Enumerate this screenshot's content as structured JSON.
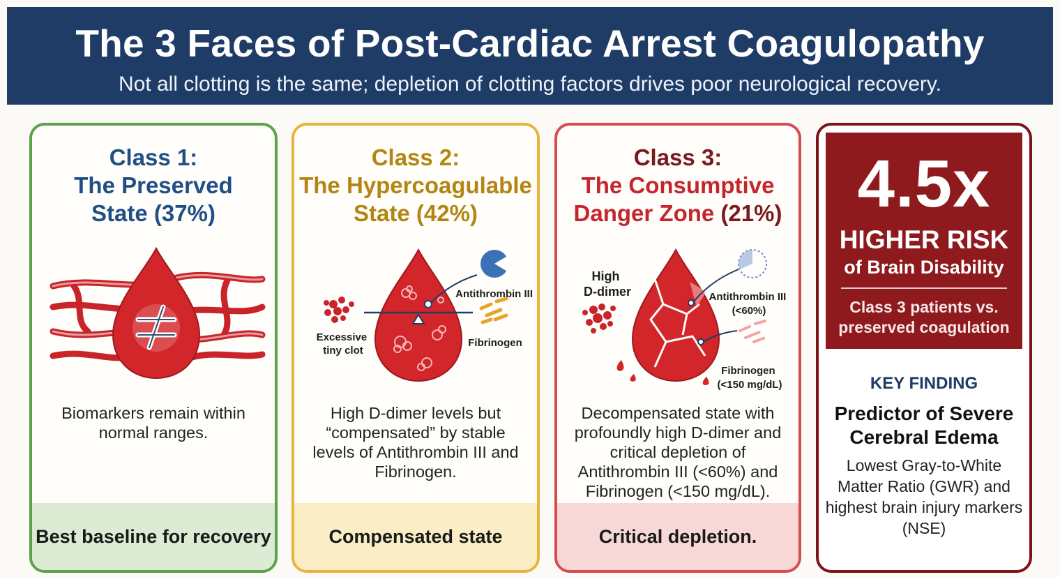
{
  "header": {
    "title": "The 3 Faces of Post-Cardiac Arrest Coagulopathy",
    "subtitle": "Not all clotting is the same; depletion of clotting factors drives poor neurological recovery."
  },
  "colors": {
    "header_bg": "#1e3c66",
    "class1": "#5aa34a",
    "class2": "#e8b53a",
    "class3": "#d84a4f",
    "risk": "#8e1a1e",
    "blood": "#d2262b"
  },
  "classes": [
    {
      "title_line1": "Class 1:",
      "title_line2": "The Preserved",
      "title_line3": "State (37%)",
      "percent": 37,
      "icon": "blood-drop-not-equal-icon",
      "description": "Biomarkers remain within normal ranges.",
      "footer": "Best baseline for recovery"
    },
    {
      "title_line1": "Class 2:",
      "title_line2": "The Hypercoagulable",
      "title_line3": "State (42%)",
      "percent": 42,
      "icon": "blood-drop-balance-icon",
      "labels": {
        "antithrombin": "Antithrombin III",
        "clot_line1": "Excessive",
        "clot_line2": "tiny clot",
        "fibrinogen": "Fibrinogen"
      },
      "description": "High D-dimer levels but “compensated” by stable levels of Antithrombin III and Fibrinogen.",
      "footer": "Compensated state"
    },
    {
      "title_line1": "Class 3:",
      "title_line2": "The Consumptive",
      "title_line3a": "Danger Zone",
      "title_line3b": " (21%)",
      "percent": 21,
      "icon": "broken-blood-drop-icon",
      "labels": {
        "ddimer_line1": "High",
        "ddimer_line2": "D-dimer",
        "antithrombin_line1": "Antithrombin III",
        "antithrombin_line2": "(<60%)",
        "fibrinogen_line1": "Fibrinogen",
        "fibrinogen_line2": "(<150 mg/dL)"
      },
      "description": "Decompensated state with profoundly high D-dimer and critical depletion of Antithrombin III (<60%) and Fibrinogen (<150 mg/dL).",
      "footer": "Critical depletion."
    }
  ],
  "risk": {
    "multiplier": "4.5x",
    "line1": "HIGHER RISK",
    "line2": "of Brain Disability",
    "comparison": "Class 3 patients vs. preserved coagulation",
    "key_label": "KEY FINDING",
    "key_title": "Predictor of Severe Cerebral Edema",
    "key_description": "Lowest Gray-to-White Matter Ratio (GWR) and highest brain injury markers (NSE)"
  }
}
